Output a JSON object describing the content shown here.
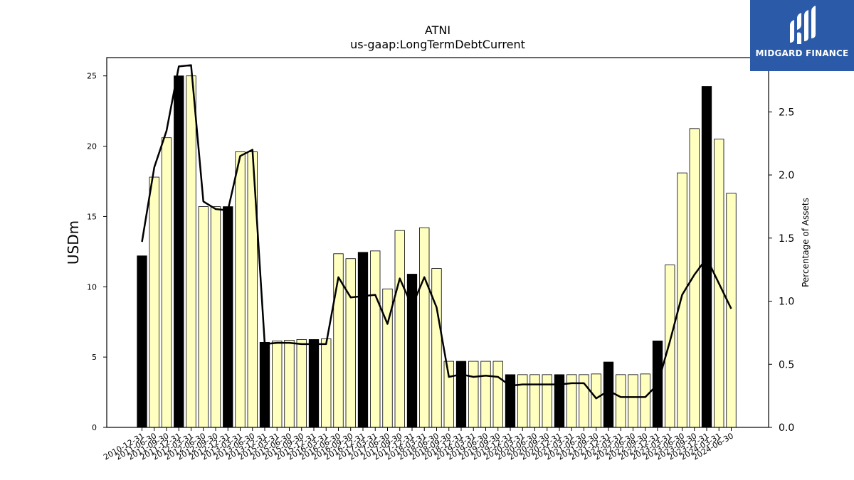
{
  "chart_data": {
    "type": "bar",
    "title": "ATNI",
    "subtitle": "us-gaap:LongTermDebtCurrent",
    "ylabel": "USDm",
    "y2label": "Percentage of Assets",
    "ylim": [
      0,
      26.3
    ],
    "y2lim": [
      0,
      2.93
    ],
    "yticks": [
      0,
      5,
      10,
      15,
      20,
      25
    ],
    "y2ticks": [
      0.0,
      0.5,
      1.0,
      1.5,
      2.0,
      2.5
    ],
    "categories": [
      "2010-12-31",
      "2011-06-30",
      "2011-09-30",
      "2011-12-31",
      "2012-03-31",
      "2012-06-30",
      "2012-09-30",
      "2012-12-31",
      "2013-03-31",
      "2013-06-30",
      "2013-12-31",
      "2015-03-31",
      "2015-06-30",
      "2015-09-30",
      "2015-12-31",
      "2016-03-31",
      "2016-06-30",
      "2016-09-30",
      "2016-12-31",
      "2017-03-31",
      "2017-06-30",
      "2017-09-30",
      "2017-12-31",
      "2018-03-31",
      "2018-06-30",
      "2018-09-30",
      "2018-12-31",
      "2019-03-31",
      "2019-06-30",
      "2019-09-30",
      "2019-12-31",
      "2020-03-31",
      "2020-06-30",
      "2020-09-30",
      "2020-12-31",
      "2021-03-31",
      "2021-06-30",
      "2021-09-30",
      "2021-12-31",
      "2022-03-31",
      "2022-06-30",
      "2022-09-30",
      "2022-12-31",
      "2023-03-31",
      "2023-06-30",
      "2023-09-30",
      "2023-12-31",
      "2024-03-31",
      "2024-06-30"
    ],
    "series": [
      {
        "name": "LongTermDebtCurrent",
        "axis": "left",
        "values": [
          12.2,
          17.8,
          20.6,
          25.0,
          25.0,
          15.7,
          15.7,
          15.7,
          19.6,
          19.6,
          6.05,
          6.15,
          6.2,
          6.25,
          6.25,
          6.3,
          12.35,
          12.0,
          12.45,
          12.55,
          9.85,
          14.0,
          10.9,
          14.2,
          11.3,
          4.7,
          4.7,
          4.7,
          4.7,
          4.7,
          3.75,
          3.75,
          3.75,
          3.75,
          3.75,
          3.75,
          3.75,
          3.8,
          4.65,
          3.75,
          3.75,
          3.8,
          6.15,
          11.55,
          18.1,
          21.25,
          24.25,
          20.5,
          16.65
        ],
        "highlight": [
          true,
          false,
          false,
          true,
          false,
          false,
          false,
          true,
          false,
          false,
          true,
          false,
          false,
          false,
          true,
          false,
          false,
          false,
          true,
          false,
          false,
          false,
          true,
          false,
          false,
          false,
          true,
          false,
          false,
          false,
          true,
          false,
          false,
          false,
          true,
          false,
          false,
          false,
          true,
          false,
          false,
          false,
          true,
          false,
          false,
          false,
          true,
          false,
          false
        ],
        "color": "#ffffc0",
        "highlight_color": "#000000"
      },
      {
        "name": "Percentage of Assets",
        "type": "line",
        "axis": "right",
        "values": [
          1.47,
          2.06,
          2.35,
          2.86,
          2.87,
          1.79,
          1.73,
          1.72,
          2.15,
          2.2,
          0.66,
          0.67,
          0.67,
          0.66,
          0.66,
          0.66,
          1.19,
          1.03,
          1.04,
          1.05,
          0.82,
          1.18,
          0.96,
          1.19,
          0.95,
          0.4,
          0.42,
          0.4,
          0.41,
          0.4,
          0.33,
          0.34,
          0.34,
          0.34,
          0.34,
          0.35,
          0.35,
          0.23,
          0.29,
          0.24,
          0.24,
          0.24,
          0.34,
          0.68,
          1.05,
          1.21,
          1.34,
          1.14,
          0.94
        ],
        "color": "#000000"
      }
    ]
  },
  "logo": {
    "text": "MIDGARD FINANCE",
    "color": "#2a5aa8"
  }
}
